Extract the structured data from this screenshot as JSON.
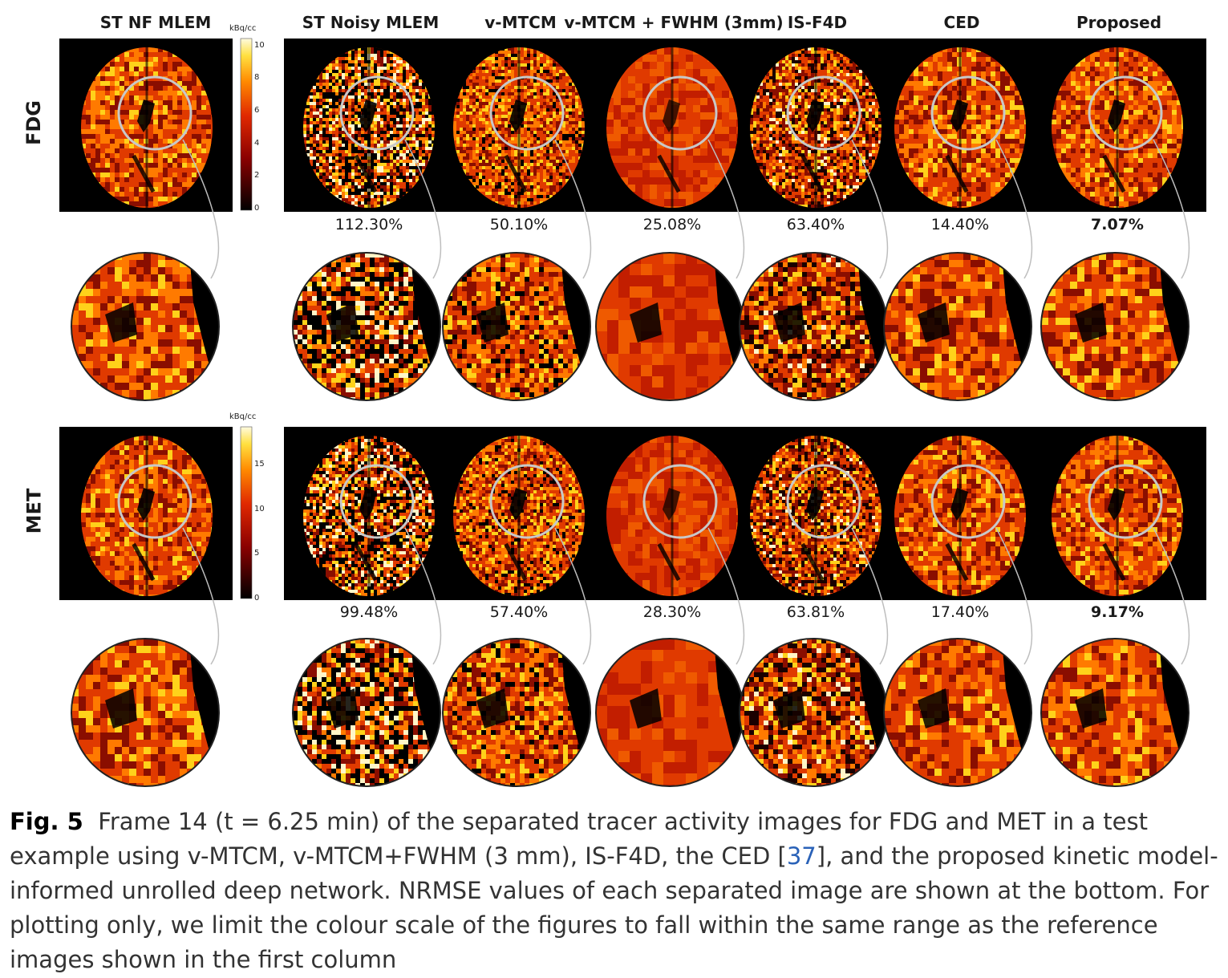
{
  "columns": [
    {
      "title": "ST NF MLEM",
      "style": "ref"
    },
    {
      "title": "ST Noisy MLEM",
      "style": "noisy"
    },
    {
      "title": "v-MTCM",
      "style": "mid"
    },
    {
      "title": "v-MTCM + FWHM (3mm)",
      "style": "smooth"
    },
    {
      "title": "IS-F4D",
      "style": "grainy"
    },
    {
      "title": "CED",
      "style": "clean"
    },
    {
      "title": "Proposed",
      "style": "ref"
    }
  ],
  "rows": [
    {
      "label": "FDG",
      "colorbar": {
        "unit": "kBq/cc",
        "ticks": [
          "10",
          "8",
          "6",
          "4",
          "2",
          "0"
        ]
      },
      "nrmse": [
        "112.30%",
        "50.10%",
        "25.08%",
        "63.40%",
        "14.40%",
        "7.07%"
      ],
      "best_index": 5
    },
    {
      "label": "MET",
      "colorbar": {
        "unit": "kBq/cc",
        "ticks": [
          "15",
          "10",
          "5",
          "0"
        ]
      },
      "nrmse": [
        "99.48%",
        "57.40%",
        "28.30%",
        "63.81%",
        "17.40%",
        "9.17%"
      ],
      "best_index": 5
    }
  ],
  "caption": {
    "fig_label": "Fig. 5",
    "text_before_ref": "Frame 14 (t = 6.25 min) of the separated tracer activity images for FDG and MET in a test example using v-MTCM, v-MTCM+FWHM (3 mm), IS-F4D, the CED [",
    "ref": "37",
    "text_after_ref": "], and the proposed kinetic model-informed unrolled deep network. NRMSE values of each separated image are shown at the bottom. For plotting only, we limit the colour scale of the figures to fall within the same range as the reference images shown in the first column"
  },
  "colors": {
    "dark": "#8a0e00",
    "mid": "#e03a00",
    "bright": "#ff7a00",
    "hot": "#ffd21a",
    "white": "#fff6c8",
    "lens": "#c8c8c8"
  }
}
